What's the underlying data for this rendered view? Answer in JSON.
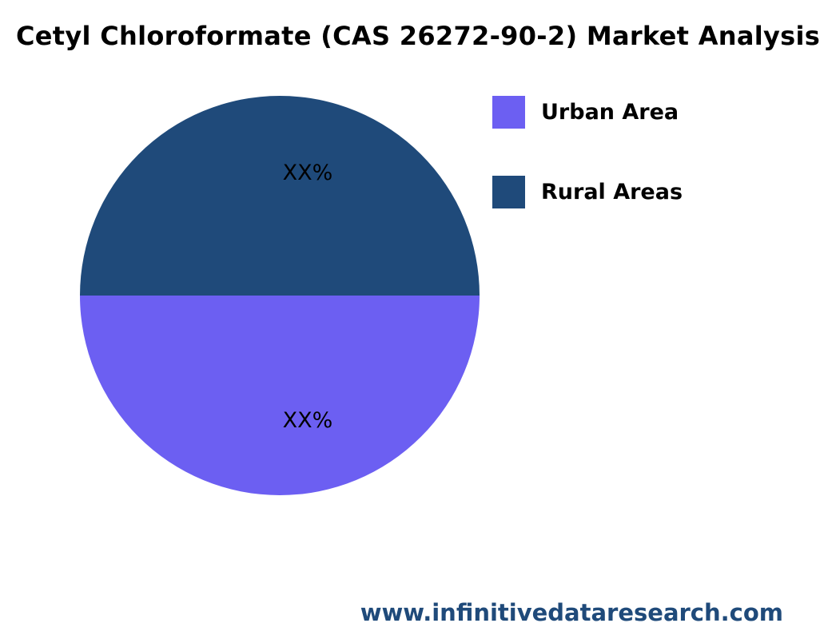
{
  "chart_data": {
    "type": "pie",
    "title": "Cetyl Chloroformate (CAS 26272-90-2) Market Analysis",
    "slices": [
      {
        "name": "Urban Area",
        "value": 50,
        "label": "XX%",
        "color": "#6c5ff2"
      },
      {
        "name": "Rural Areas",
        "value": 50,
        "label": "XX%",
        "color": "#1f4a7a"
      }
    ],
    "legend_placement": "top-right"
  },
  "watermark": "www.infinitivedataresearch.com"
}
